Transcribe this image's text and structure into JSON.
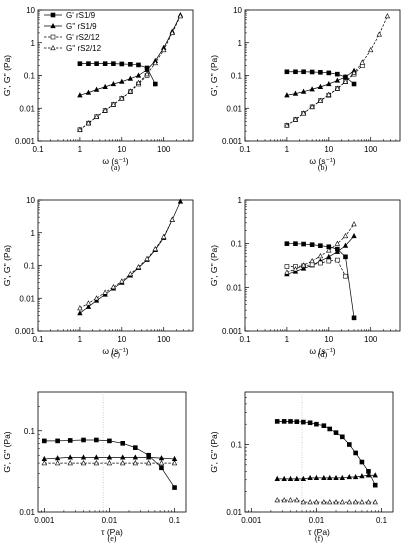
{
  "chart_data": [
    {
      "caption": "(a)",
      "type": "line",
      "xlabel": "ω (s⁻¹)",
      "ylabel": "G', G'' (Pa)",
      "xscale": "log",
      "yscale": "log",
      "xlim": [
        0.1,
        500
      ],
      "ylim": [
        0.001,
        10
      ],
      "xticks": [
        {
          "v": 0.1,
          "t": "0.1"
        },
        {
          "v": 1,
          "t": "1"
        },
        {
          "v": 10,
          "t": "10"
        },
        {
          "v": 100,
          "t": "100"
        }
      ],
      "yticks": [
        {
          "v": 0.001,
          "t": "0.001"
        },
        {
          "v": 0.01,
          "t": "0.01"
        },
        {
          "v": 0.1,
          "t": "0.1"
        },
        {
          "v": 1,
          "t": "1"
        },
        {
          "v": 10,
          "t": "10"
        }
      ],
      "legend": {
        "position": "top-left"
      },
      "series": [
        {
          "name": "G' rS1/9",
          "marker": "square",
          "filled": true,
          "dash": false,
          "x": [
            1,
            1.6,
            2.5,
            4,
            6.3,
            10,
            16,
            25,
            40,
            63
          ],
          "y": [
            0.23,
            0.23,
            0.23,
            0.23,
            0.23,
            0.225,
            0.22,
            0.21,
            0.17,
            0.055
          ]
        },
        {
          "name": "G'' rS1/9",
          "marker": "triangle",
          "filled": true,
          "dash": false,
          "x": [
            1,
            1.6,
            2.5,
            4,
            6.3,
            10,
            16,
            25,
            40,
            63,
            100,
            160,
            250
          ],
          "y": [
            0.025,
            0.03,
            0.037,
            0.045,
            0.055,
            0.065,
            0.08,
            0.1,
            0.15,
            0.28,
            0.7,
            2.2,
            7
          ]
        },
        {
          "name": "G' rS2/12",
          "marker": "square",
          "filled": false,
          "dash": true,
          "x": [
            1,
            1.6,
            2.5,
            4,
            6.3,
            10,
            16,
            25,
            40
          ],
          "y": [
            0.0022,
            0.0035,
            0.0055,
            0.0085,
            0.013,
            0.02,
            0.032,
            0.055,
            0.1
          ]
        },
        {
          "name": "G'' rS2/12",
          "marker": "triangle",
          "filled": false,
          "dash": true,
          "x": [
            1,
            1.6,
            2.5,
            4,
            6.3,
            10,
            16,
            25,
            40,
            63,
            100,
            160,
            250
          ],
          "y": [
            0.0022,
            0.0035,
            0.0055,
            0.0085,
            0.013,
            0.02,
            0.033,
            0.06,
            0.11,
            0.24,
            0.6,
            2,
            6.5
          ]
        }
      ]
    },
    {
      "caption": "(b)",
      "type": "line",
      "xlabel": "ω (s⁻¹)",
      "ylabel": "G', G'' (Pa)",
      "xscale": "log",
      "yscale": "log",
      "xlim": [
        0.1,
        500
      ],
      "ylim": [
        0.001,
        10
      ],
      "xticks": [
        {
          "v": 0.1,
          "t": "0.1"
        },
        {
          "v": 1,
          "t": "1"
        },
        {
          "v": 10,
          "t": "10"
        },
        {
          "v": 100,
          "t": "100"
        }
      ],
      "yticks": [
        {
          "v": 0.001,
          "t": "0.001"
        },
        {
          "v": 0.01,
          "t": "0.01"
        },
        {
          "v": 0.1,
          "t": "0.1"
        },
        {
          "v": 1,
          "t": "1"
        },
        {
          "v": 10,
          "t": "10"
        }
      ],
      "series": [
        {
          "marker": "square",
          "filled": true,
          "dash": false,
          "x": [
            1,
            1.6,
            2.5,
            4,
            6.3,
            10,
            16,
            25,
            40
          ],
          "y": [
            0.13,
            0.13,
            0.13,
            0.128,
            0.125,
            0.12,
            0.11,
            0.09,
            0.055
          ]
        },
        {
          "marker": "triangle",
          "filled": true,
          "dash": false,
          "x": [
            1,
            1.6,
            2.5,
            4,
            6.3,
            10,
            16,
            25,
            40
          ],
          "y": [
            0.025,
            0.028,
            0.032,
            0.038,
            0.045,
            0.055,
            0.07,
            0.09,
            0.14
          ]
        },
        {
          "marker": "square",
          "filled": false,
          "dash": true,
          "x": [
            1,
            1.6,
            2.5,
            4,
            6.3,
            10,
            16,
            25,
            40,
            63
          ],
          "y": [
            0.003,
            0.0045,
            0.007,
            0.011,
            0.017,
            0.025,
            0.04,
            0.065,
            0.11,
            0.2
          ]
        },
        {
          "marker": "triangle",
          "filled": false,
          "dash": true,
          "x": [
            1,
            1.6,
            2.5,
            4,
            6.3,
            10,
            16,
            25,
            40,
            63,
            100,
            160,
            250
          ],
          "y": [
            0.003,
            0.0045,
            0.007,
            0.011,
            0.017,
            0.026,
            0.04,
            0.065,
            0.12,
            0.25,
            0.6,
            1.8,
            6.5
          ]
        }
      ]
    },
    {
      "caption": "(c)",
      "type": "line",
      "xlabel": "ω (s⁻¹)",
      "ylabel": "G', G'' (Pa)",
      "xscale": "log",
      "yscale": "log",
      "xlim": [
        0.1,
        500
      ],
      "ylim": [
        0.001,
        10
      ],
      "xticks": [
        {
          "v": 0.1,
          "t": "0.1"
        },
        {
          "v": 1,
          "t": "1"
        },
        {
          "v": 10,
          "t": "10"
        },
        {
          "v": 100,
          "t": "100"
        }
      ],
      "yticks": [
        {
          "v": 0.001,
          "t": "0.001"
        },
        {
          "v": 0.01,
          "t": "0.01"
        },
        {
          "v": 0.1,
          "t": "0.1"
        },
        {
          "v": 1,
          "t": "1"
        },
        {
          "v": 10,
          "t": "10"
        }
      ],
      "series": [
        {
          "marker": "triangle",
          "filled": true,
          "dash": false,
          "x": [
            1,
            1.6,
            2.5,
            4,
            6.3,
            10,
            16,
            25,
            40,
            63,
            100,
            160,
            250
          ],
          "y": [
            0.0035,
            0.0055,
            0.0085,
            0.013,
            0.02,
            0.03,
            0.05,
            0.085,
            0.15,
            0.3,
            0.7,
            2.5,
            9
          ]
        },
        {
          "marker": "triangle",
          "filled": false,
          "dash": true,
          "x": [
            1,
            1.6,
            2.5,
            4,
            6.3,
            10,
            16,
            25,
            40,
            63,
            100,
            160
          ],
          "y": [
            0.005,
            0.007,
            0.01,
            0.015,
            0.022,
            0.033,
            0.055,
            0.09,
            0.16,
            0.32,
            0.75,
            2.5
          ]
        }
      ]
    },
    {
      "caption": "(d)",
      "type": "line",
      "xlabel": "ω (s⁻¹)",
      "ylabel": "G', G'' (Pa)",
      "xscale": "log",
      "yscale": "log",
      "xlim": [
        0.1,
        500
      ],
      "ylim": [
        0.001,
        1
      ],
      "xticks": [
        {
          "v": 0.1,
          "t": "0.1"
        },
        {
          "v": 1,
          "t": "1"
        },
        {
          "v": 10,
          "t": "10"
        },
        {
          "v": 100,
          "t": "100"
        }
      ],
      "yticks": [
        {
          "v": 0.001,
          "t": "0.001"
        },
        {
          "v": 0.01,
          "t": "0.01"
        },
        {
          "v": 0.1,
          "t": "0.1"
        },
        {
          "v": 1,
          "t": "1"
        }
      ],
      "series": [
        {
          "marker": "square",
          "filled": true,
          "dash": false,
          "x": [
            1,
            1.6,
            2.5,
            4,
            6.3,
            10,
            16,
            25,
            40
          ],
          "y": [
            0.1,
            0.1,
            0.098,
            0.095,
            0.09,
            0.085,
            0.075,
            0.05,
            0.002
          ]
        },
        {
          "marker": "triangle",
          "filled": true,
          "dash": false,
          "x": [
            1,
            1.6,
            2.5,
            4,
            6.3,
            10,
            16,
            25,
            40
          ],
          "y": [
            0.02,
            0.023,
            0.027,
            0.032,
            0.04,
            0.05,
            0.065,
            0.09,
            0.15
          ]
        },
        {
          "marker": "square",
          "filled": false,
          "dash": true,
          "x": [
            1,
            1.6,
            2.5,
            4,
            6.3,
            10,
            16,
            25
          ],
          "y": [
            0.03,
            0.03,
            0.031,
            0.033,
            0.036,
            0.04,
            0.042,
            0.018
          ]
        },
        {
          "marker": "triangle",
          "filled": false,
          "dash": true,
          "x": [
            1,
            1.6,
            2.5,
            4,
            6.3,
            10,
            16,
            25,
            40
          ],
          "y": [
            0.022,
            0.026,
            0.032,
            0.04,
            0.052,
            0.07,
            0.1,
            0.15,
            0.28
          ]
        }
      ]
    },
    {
      "caption": "(e)",
      "type": "line",
      "xlabel": "τ (Pa)",
      "ylabel": "G', G'' (Pa)",
      "xscale": "log",
      "yscale": "log",
      "xlim": [
        0.0008,
        0.15
      ],
      "ylim": [
        0.01,
        0.3
      ],
      "xticks": [
        {
          "v": 0.001,
          "t": "0.001"
        },
        {
          "v": 0.01,
          "t": "0.01"
        },
        {
          "v": 0.1,
          "t": "0.1"
        }
      ],
      "yticks": [
        {
          "v": 0.01,
          "t": "0.01"
        },
        {
          "v": 0.1,
          "t": "0.1"
        }
      ],
      "vline": 0.008,
      "series": [
        {
          "marker": "square",
          "filled": true,
          "dash": false,
          "x": [
            0.001,
            0.0016,
            0.0025,
            0.004,
            0.0063,
            0.01,
            0.016,
            0.025,
            0.04,
            0.063,
            0.1
          ],
          "y": [
            0.075,
            0.075,
            0.076,
            0.077,
            0.077,
            0.075,
            0.07,
            0.062,
            0.05,
            0.035,
            0.02
          ]
        },
        {
          "marker": "triangle",
          "filled": true,
          "dash": false,
          "x": [
            0.001,
            0.0016,
            0.0025,
            0.004,
            0.0063,
            0.01,
            0.016,
            0.025,
            0.04,
            0.063,
            0.1
          ],
          "y": [
            0.045,
            0.046,
            0.047,
            0.047,
            0.047,
            0.047,
            0.047,
            0.047,
            0.047,
            0.046,
            0.045
          ]
        },
        {
          "marker": "triangle",
          "filled": false,
          "dash": true,
          "x": [
            0.001,
            0.0016,
            0.0025,
            0.004,
            0.0063,
            0.01,
            0.016,
            0.025,
            0.04,
            0.063,
            0.1
          ],
          "y": [
            0.04,
            0.04,
            0.04,
            0.04,
            0.04,
            0.04,
            0.04,
            0.04,
            0.04,
            0.04,
            0.04
          ]
        }
      ]
    },
    {
      "caption": "(f)",
      "type": "line",
      "xlabel": "τ (Pa)",
      "ylabel": "G', G'' (Pa)",
      "xscale": "log",
      "yscale": "log",
      "xlim": [
        0.0008,
        0.15
      ],
      "ylim": [
        0.01,
        0.6
      ],
      "xticks": [
        {
          "v": 0.001,
          "t": "0.001"
        },
        {
          "v": 0.01,
          "t": "0.01"
        },
        {
          "v": 0.1,
          "t": "0.1"
        }
      ],
      "yticks": [
        {
          "v": 0.01,
          "t": "0.01"
        },
        {
          "v": 0.1,
          "t": "0.1"
        }
      ],
      "vline": 0.006,
      "series": [
        {
          "marker": "square",
          "filled": true,
          "dash": false,
          "x": [
            0.0025,
            0.0032,
            0.004,
            0.005,
            0.0063,
            0.008,
            0.01,
            0.013,
            0.016,
            0.02,
            0.025,
            0.032,
            0.04,
            0.05,
            0.063,
            0.08
          ],
          "y": [
            0.22,
            0.22,
            0.22,
            0.218,
            0.215,
            0.21,
            0.2,
            0.19,
            0.17,
            0.15,
            0.13,
            0.1,
            0.075,
            0.055,
            0.04,
            0.025
          ]
        },
        {
          "marker": "triangle",
          "filled": true,
          "dash": false,
          "x": [
            0.0025,
            0.0032,
            0.004,
            0.005,
            0.0063,
            0.008,
            0.01,
            0.013,
            0.016,
            0.02,
            0.025,
            0.032,
            0.04,
            0.05,
            0.063,
            0.08
          ],
          "y": [
            0.031,
            0.031,
            0.031,
            0.031,
            0.031,
            0.032,
            0.032,
            0.032,
            0.032,
            0.032,
            0.032,
            0.033,
            0.033,
            0.034,
            0.035,
            0.035
          ]
        },
        {
          "marker": "triangle",
          "filled": false,
          "dash": true,
          "x": [
            0.0025,
            0.0032,
            0.004,
            0.005,
            0.0063,
            0.008,
            0.01,
            0.013,
            0.016,
            0.02,
            0.025,
            0.032,
            0.04,
            0.05,
            0.063,
            0.08
          ],
          "y": [
            0.015,
            0.015,
            0.015,
            0.015,
            0.014,
            0.014,
            0.014,
            0.014,
            0.014,
            0.014,
            0.014,
            0.014,
            0.014,
            0.014,
            0.014,
            0.014
          ]
        }
      ]
    }
  ]
}
